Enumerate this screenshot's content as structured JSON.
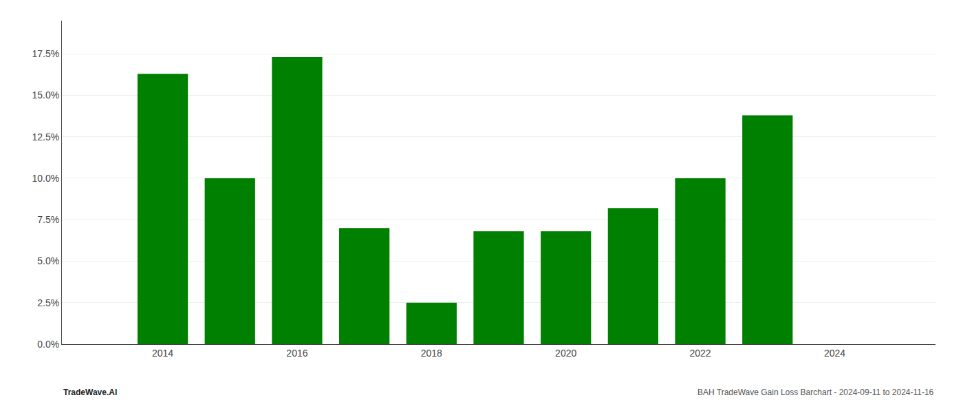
{
  "chart_data": {
    "type": "bar",
    "x": [
      2014,
      2015,
      2016,
      2017,
      2018,
      2019,
      2020,
      2021,
      2022,
      2023
    ],
    "values": [
      0.163,
      0.1,
      0.173,
      0.07,
      0.025,
      0.068,
      0.068,
      0.082,
      0.1,
      0.138
    ],
    "color": "#008000",
    "xlim": [
      2012.5,
      2025.5
    ],
    "xticks": [
      2014,
      2016,
      2018,
      2020,
      2022,
      2024
    ],
    "ylim": [
      0,
      0.195
    ],
    "yticks": [
      {
        "value": 0.0,
        "label": "0.0%"
      },
      {
        "value": 0.025,
        "label": "2.5%"
      },
      {
        "value": 0.05,
        "label": "5.0%"
      },
      {
        "value": 0.075,
        "label": "7.5%"
      },
      {
        "value": 0.1,
        "label": "10.0%"
      },
      {
        "value": 0.125,
        "label": "12.5%"
      },
      {
        "value": 0.15,
        "label": "15.0%"
      },
      {
        "value": 0.175,
        "label": "17.5%"
      }
    ],
    "grid": true,
    "annotations": [
      "TradeWave.AI",
      "BAH TradeWave Gain Loss Barchart - 2024-09-11 to 2024-11-16"
    ]
  }
}
